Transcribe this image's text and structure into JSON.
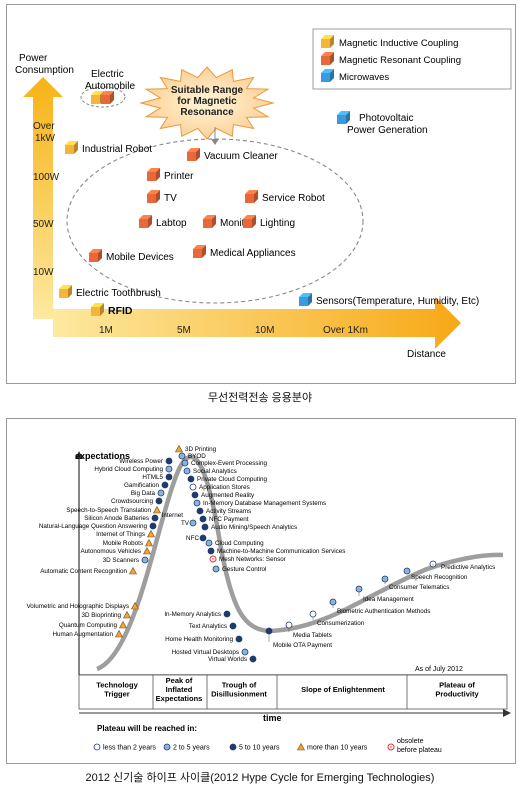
{
  "top": {
    "y_axis_title_line1": "Power",
    "y_axis_title_line2": "Consumption",
    "x_axis_title": "Distance",
    "y_ticks": [
      "Over 1kW",
      "100W",
      "50W",
      "10W"
    ],
    "x_ticks": [
      "1M",
      "5M",
      "10M",
      "Over 1Km"
    ],
    "legend": [
      {
        "label": "Magnetic Inductive Coupling",
        "color": "#f5b43a"
      },
      {
        "label": "Magnetic Resonant Coupling",
        "color": "#e8683a"
      },
      {
        "label": "Microwaves",
        "color": "#3a9ae0"
      }
    ],
    "burst_lines": [
      "Suitable Range",
      "for Magnetic",
      "Resonance"
    ],
    "electric_automobile_lines": [
      "Electric",
      "Automobile"
    ],
    "photovoltaic_lines": [
      "Photovoltaic",
      "Power Generation"
    ],
    "items": [
      {
        "label": "Industrial Robot",
        "type": "inductive"
      },
      {
        "label": "Vacuum Cleaner",
        "type": "resonant"
      },
      {
        "label": "Printer",
        "type": "resonant"
      },
      {
        "label": "TV",
        "type": "resonant"
      },
      {
        "label": "Service Robot",
        "type": "resonant"
      },
      {
        "label": "Labtop",
        "type": "resonant"
      },
      {
        "label": "Monitor",
        "type": "resonant"
      },
      {
        "label": "Lighting",
        "type": "resonant"
      },
      {
        "label": "Medical Appliances",
        "type": "resonant"
      },
      {
        "label": "Mobile Devices",
        "type": "resonant"
      },
      {
        "label": "Electric Toothbrush",
        "type": "inductive"
      },
      {
        "label": "RFID",
        "type": "inductive"
      },
      {
        "label": "Sensors(Temperature, Humidity, Etc)",
        "type": "microwave"
      }
    ]
  },
  "caption_top": "무선전력전송 응용분야",
  "hype": {
    "y_label": "expectations",
    "x_label": "time",
    "as_of": "As of July 2012",
    "phases": [
      "Technology Trigger",
      "Peak of Inflated Expectations",
      "Trough of Disillusionment",
      "Slope of Enlightenment",
      "Plateau of Productivity"
    ],
    "legend_title": "Plateau will be reached in:",
    "legend": [
      {
        "label": "less than 2 years",
        "key": "lt2"
      },
      {
        "label": "2 to 5 years",
        "key": "2to5"
      },
      {
        "label": "5 to 10 years",
        "key": "5to10"
      },
      {
        "label": "more than 10 years",
        "key": "gt10"
      },
      {
        "label": "obsolete before plateau",
        "key": "obsolete"
      }
    ],
    "labels": {
      "rising_left": [
        "Wireless Power",
        "Hybrid Cloud Computing",
        "HTML5",
        "Gamification",
        "Big Data",
        "Crowdsourcing",
        "Speech-to-Speech Translation",
        "Silicon Anode Batteries",
        "Natural-Language Question Answering",
        "Internet of Things",
        "Mobile Robots",
        "Autonomous Vehicles",
        "3D Scanners",
        "Automatic Content Recognition"
      ],
      "trigger": [
        "Volumetric and Holographic Displays",
        "3D Bioprinting",
        "Quantum Computing",
        "Human Augmentation"
      ],
      "peak_right": [
        "3D Printing",
        "BYOD",
        "Complex-Event Processing",
        "Social Analytics",
        "Private Cloud Computing",
        "Application Stores",
        "Augmented Reality",
        "In-Memory Database Management Systems",
        "Activity Streams",
        "NFC Payment",
        "Audio Mining/Speech Analytics"
      ],
      "peak_inner": [
        "Internet TV",
        "NFC"
      ],
      "falling_right": [
        "Cloud Computing",
        "Machine-to-Machine Communication Services",
        "Mesh Networks: Sensor",
        "Gesture Control"
      ],
      "trough": [
        "In-Memory Analytics",
        "Text Analytics",
        "Home Health Monitoring",
        "Hosted Virtual Desktops",
        "Virtual Worlds"
      ],
      "slope": [
        "Mobile OTA Payment",
        "Media Tablets",
        "Consumerization",
        "Biometric Authentication Methods",
        "Idea Management",
        "Consumer Telematics",
        "Speech Recognition",
        "Predictive Analytics"
      ]
    }
  },
  "caption_bottom": "2012 신기술 하이프 사이클(2012 Hype Cycle for Emerging Technologies)"
}
